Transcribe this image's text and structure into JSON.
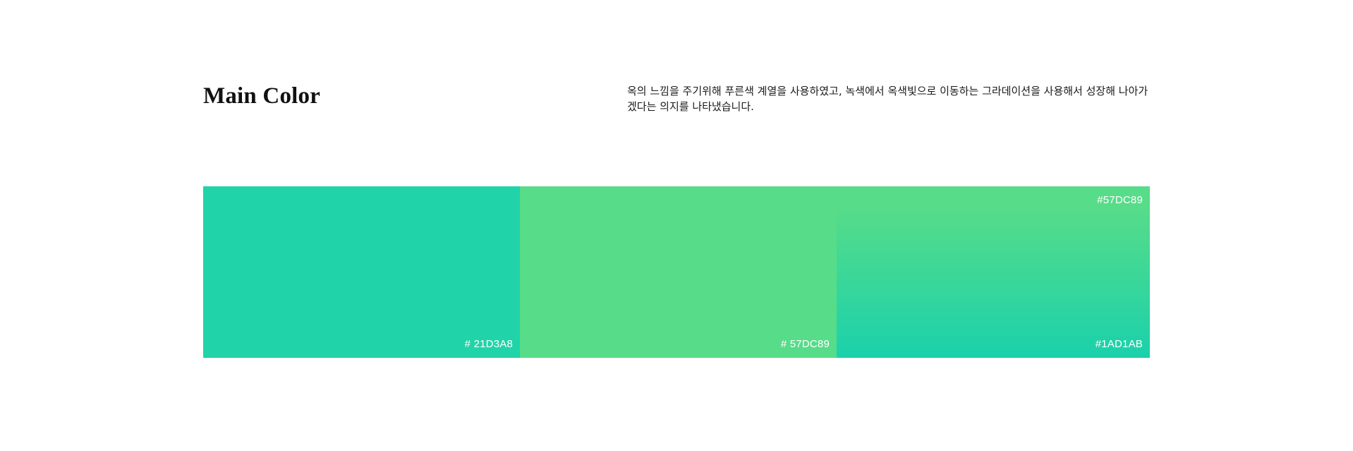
{
  "header": {
    "title": "Main Color",
    "description": "옥의 느낌을 주기위해 푸른색 계열을 사용하였고, 녹색에서 옥색빛으로 이동하는 그라데이션을 사용해서 성장해 나아가겠다는 의지를 나타냈습니다."
  },
  "swatches": [
    {
      "color": "#21D3A8",
      "label": "# 21D3A8"
    },
    {
      "color": "#57DC89",
      "label": "# 57DC89"
    },
    {
      "gradient_from": "#57DC89",
      "gradient_to": "#1AD1AB",
      "label_top": "#57DC89",
      "label_bottom": "#1AD1AB"
    }
  ]
}
